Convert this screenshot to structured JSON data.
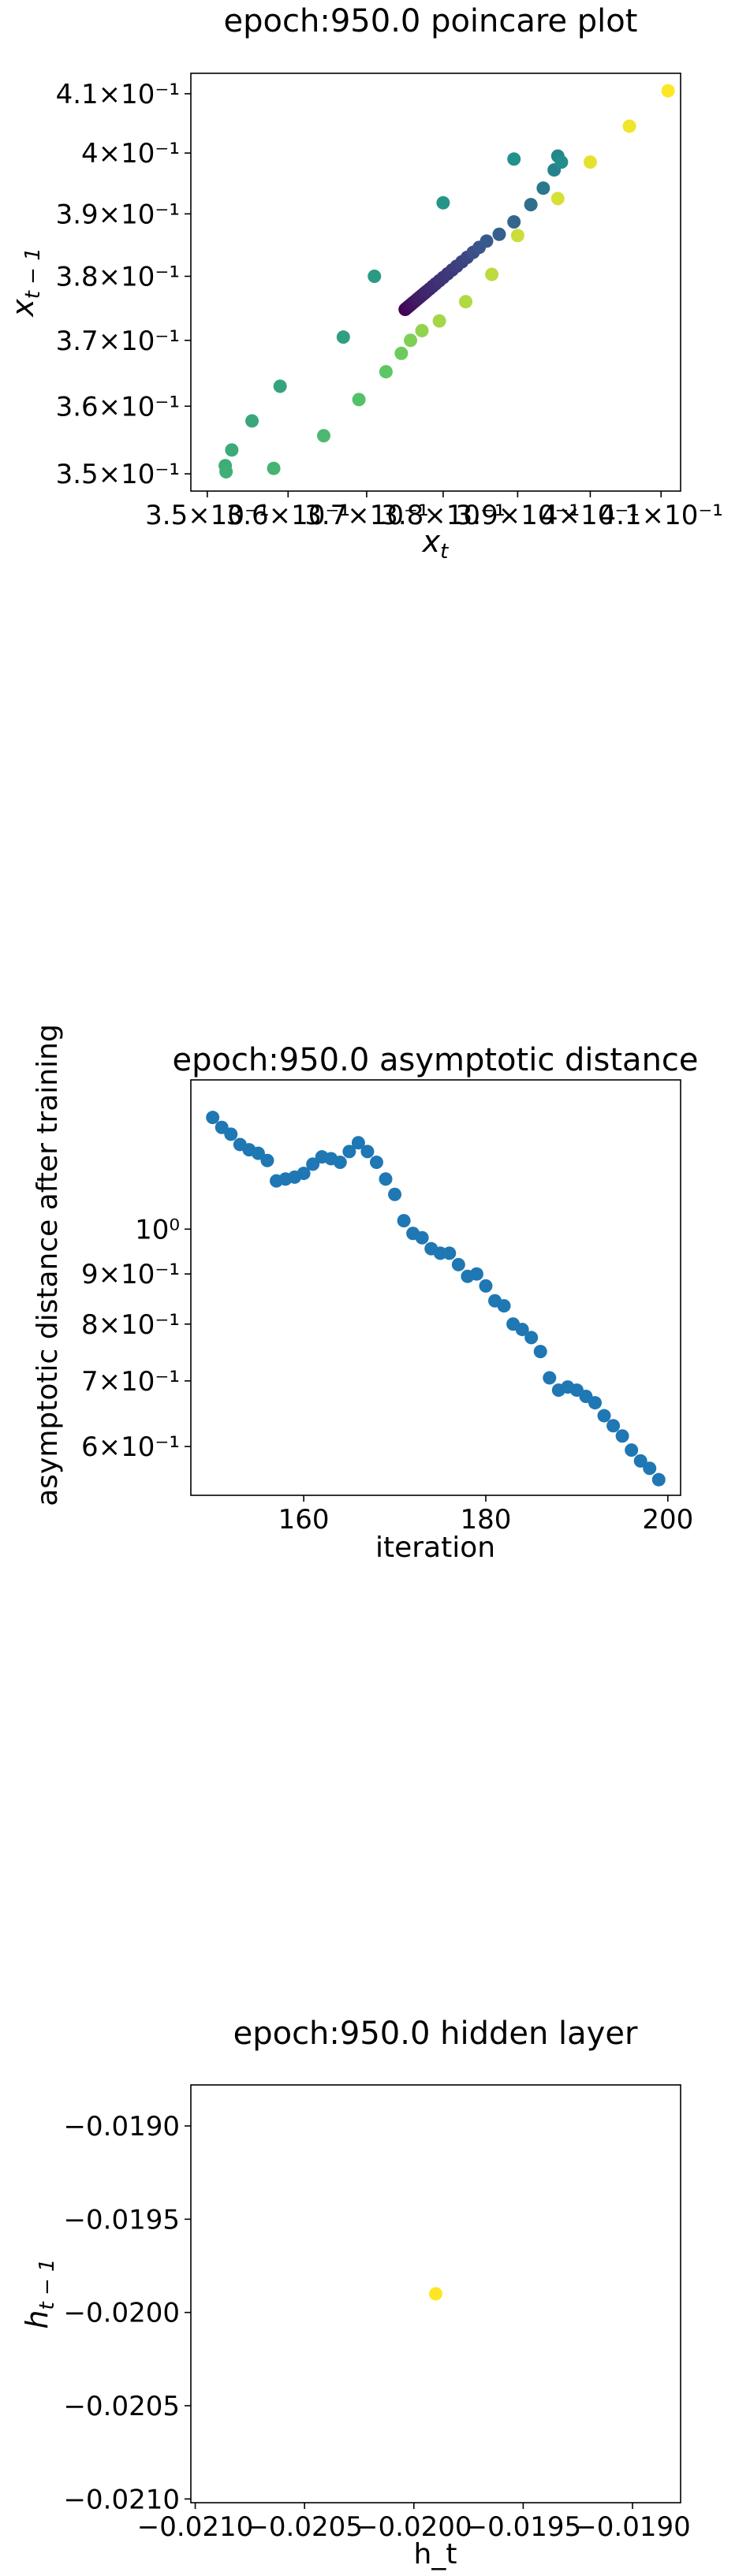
{
  "chart_data": [
    {
      "type": "scatter",
      "title": "epoch:950.0 poincare plot",
      "xlabel": "x_t",
      "ylabel": "x_{t-1}",
      "x_scale": "log",
      "y_scale": "log",
      "xlim": [
        0.348,
        0.4128
      ],
      "ylim": [
        0.3475,
        0.4135
      ],
      "grid": false,
      "colormap": "viridis",
      "x_ticks": [
        {
          "value": 0.35,
          "label": "3.5×10⁻¹"
        },
        {
          "value": 0.36,
          "label": "3.6×10⁻¹"
        },
        {
          "value": 0.37,
          "label": "3.7×10⁻¹"
        },
        {
          "value": 0.38,
          "label": "3.8×10⁻¹"
        },
        {
          "value": 0.39,
          "label": "3.9×10⁻¹"
        },
        {
          "value": 0.4,
          "label": "4×10⁻¹"
        },
        {
          "value": 0.41,
          "label": "4.1×10⁻¹"
        }
      ],
      "y_ticks": [
        {
          "value": 0.35,
          "label": "3.5×10⁻¹"
        },
        {
          "value": 0.36,
          "label": "3.6×10⁻¹"
        },
        {
          "value": 0.37,
          "label": "3.7×10⁻¹"
        },
        {
          "value": 0.38,
          "label": "3.8×10⁻¹"
        },
        {
          "value": 0.39,
          "label": "3.9×10⁻¹"
        },
        {
          "value": 0.4,
          "label": "4×10⁻¹"
        },
        {
          "value": 0.41,
          "label": "4.1×10⁻¹"
        }
      ],
      "points": [
        {
          "x": 0.375,
          "y": 0.3748,
          "c": 0.0
        },
        {
          "x": 0.3752,
          "y": 0.375,
          "c": 0.01
        },
        {
          "x": 0.3754,
          "y": 0.3752,
          "c": 0.02
        },
        {
          "x": 0.3756,
          "y": 0.3754,
          "c": 0.03
        },
        {
          "x": 0.3758,
          "y": 0.3756,
          "c": 0.04
        },
        {
          "x": 0.376,
          "y": 0.3758,
          "c": 0.05
        },
        {
          "x": 0.3763,
          "y": 0.3761,
          "c": 0.06
        },
        {
          "x": 0.3766,
          "y": 0.3764,
          "c": 0.07
        },
        {
          "x": 0.3769,
          "y": 0.3767,
          "c": 0.08
        },
        {
          "x": 0.3772,
          "y": 0.377,
          "c": 0.09
        },
        {
          "x": 0.3775,
          "y": 0.3773,
          "c": 0.1
        },
        {
          "x": 0.3778,
          "y": 0.3776,
          "c": 0.11
        },
        {
          "x": 0.3782,
          "y": 0.378,
          "c": 0.12
        },
        {
          "x": 0.3786,
          "y": 0.3784,
          "c": 0.13
        },
        {
          "x": 0.379,
          "y": 0.3788,
          "c": 0.14
        },
        {
          "x": 0.3795,
          "y": 0.3793,
          "c": 0.15
        },
        {
          "x": 0.38,
          "y": 0.3798,
          "c": 0.16
        },
        {
          "x": 0.3806,
          "y": 0.3804,
          "c": 0.17
        },
        {
          "x": 0.3812,
          "y": 0.381,
          "c": 0.18
        },
        {
          "x": 0.3818,
          "y": 0.3816,
          "c": 0.19
        },
        {
          "x": 0.3825,
          "y": 0.3823,
          "c": 0.2
        },
        {
          "x": 0.3832,
          "y": 0.383,
          "c": 0.22
        },
        {
          "x": 0.384,
          "y": 0.3838,
          "c": 0.24
        },
        {
          "x": 0.3848,
          "y": 0.3846,
          "c": 0.26
        },
        {
          "x": 0.3858,
          "y": 0.3856,
          "c": 0.28
        },
        {
          "x": 0.3875,
          "y": 0.3867,
          "c": 0.3
        },
        {
          "x": 0.3895,
          "y": 0.3887,
          "c": 0.33
        },
        {
          "x": 0.3918,
          "y": 0.3915,
          "c": 0.36
        },
        {
          "x": 0.3935,
          "y": 0.3942,
          "c": 0.4
        },
        {
          "x": 0.395,
          "y": 0.3972,
          "c": 0.44
        },
        {
          "x": 0.3955,
          "y": 0.3995,
          "c": 0.46
        },
        {
          "x": 0.396,
          "y": 0.3985,
          "c": 0.48
        },
        {
          "x": 0.3895,
          "y": 0.399,
          "c": 0.5
        },
        {
          "x": 0.38,
          "y": 0.3918,
          "c": 0.52
        },
        {
          "x": 0.371,
          "y": 0.38,
          "c": 0.54
        },
        {
          "x": 0.367,
          "y": 0.3705,
          "c": 0.56
        },
        {
          "x": 0.359,
          "y": 0.363,
          "c": 0.58
        },
        {
          "x": 0.3555,
          "y": 0.3578,
          "c": 0.6
        },
        {
          "x": 0.353,
          "y": 0.3535,
          "c": 0.61
        },
        {
          "x": 0.3522,
          "y": 0.3512,
          "c": 0.62
        },
        {
          "x": 0.3523,
          "y": 0.3503,
          "c": 0.63
        },
        {
          "x": 0.3582,
          "y": 0.3508,
          "c": 0.65
        },
        {
          "x": 0.3645,
          "y": 0.3556,
          "c": 0.68
        },
        {
          "x": 0.369,
          "y": 0.361,
          "c": 0.71
        },
        {
          "x": 0.3725,
          "y": 0.3652,
          "c": 0.74
        },
        {
          "x": 0.3745,
          "y": 0.368,
          "c": 0.77
        },
        {
          "x": 0.3757,
          "y": 0.37,
          "c": 0.8
        },
        {
          "x": 0.3772,
          "y": 0.3715,
          "c": 0.83
        },
        {
          "x": 0.3795,
          "y": 0.373,
          "c": 0.86
        },
        {
          "x": 0.383,
          "y": 0.376,
          "c": 0.88
        },
        {
          "x": 0.3865,
          "y": 0.3803,
          "c": 0.9
        },
        {
          "x": 0.39,
          "y": 0.3865,
          "c": 0.92
        },
        {
          "x": 0.3955,
          "y": 0.3925,
          "c": 0.94
        },
        {
          "x": 0.4,
          "y": 0.3985,
          "c": 0.96
        },
        {
          "x": 0.4055,
          "y": 0.4045,
          "c": 0.98
        },
        {
          "x": 0.411,
          "y": 0.4105,
          "c": 1.0
        }
      ]
    },
    {
      "type": "scatter",
      "title": "epoch:950.0 asymptotic distance",
      "xlabel": "iteration",
      "ylabel": "asymptotic distance after training",
      "x_scale": "linear",
      "y_scale": "log",
      "xlim": [
        147.6,
        201.4
      ],
      "ylim": [
        0.535,
        1.42
      ],
      "grid": false,
      "color": "#1f77b4",
      "x_ticks": [
        {
          "value": 160,
          "label": "160"
        },
        {
          "value": 180,
          "label": "180"
        },
        {
          "value": 200,
          "label": "200"
        }
      ],
      "y_ticks": [
        {
          "value": 1.0,
          "label": "10⁰"
        },
        {
          "value": 0.9,
          "label": "9×10⁻¹"
        },
        {
          "value": 0.8,
          "label": "8×10⁻¹"
        },
        {
          "value": 0.7,
          "label": "7×10⁻¹"
        },
        {
          "value": 0.6,
          "label": "6×10⁻¹"
        }
      ],
      "x": [
        150,
        151,
        152,
        153,
        154,
        155,
        156,
        157,
        158,
        159,
        160,
        161,
        162,
        163,
        164,
        165,
        166,
        167,
        168,
        169,
        170,
        171,
        172,
        173,
        174,
        175,
        176,
        177,
        178,
        179,
        180,
        181,
        182,
        183,
        184,
        185,
        186,
        187,
        188,
        189,
        190,
        191,
        192,
        193,
        194,
        195,
        196,
        197,
        198,
        199
      ],
      "y": [
        1.3,
        1.27,
        1.25,
        1.22,
        1.205,
        1.195,
        1.175,
        1.12,
        1.125,
        1.13,
        1.14,
        1.165,
        1.185,
        1.18,
        1.17,
        1.2,
        1.225,
        1.2,
        1.17,
        1.125,
        1.085,
        1.02,
        0.99,
        0.98,
        0.955,
        0.945,
        0.945,
        0.92,
        0.895,
        0.9,
        0.875,
        0.845,
        0.835,
        0.8,
        0.79,
        0.775,
        0.75,
        0.705,
        0.685,
        0.69,
        0.685,
        0.675,
        0.665,
        0.645,
        0.63,
        0.615,
        0.595,
        0.58,
        0.57,
        0.555
      ]
    },
    {
      "type": "scatter",
      "title": "epoch:950.0 hidden layer",
      "xlabel": "h_t",
      "ylabel": "h_{t-1}",
      "x_scale": "linear",
      "y_scale": "linear",
      "xlim": [
        -0.02102,
        -0.01878
      ],
      "ylim": [
        -0.02102,
        -0.01878
      ],
      "grid": false,
      "color": "#fde725",
      "x_ticks": [
        {
          "value": -0.021,
          "label": "−0.0210"
        },
        {
          "value": -0.0205,
          "label": "−0.0205"
        },
        {
          "value": -0.02,
          "label": "−0.0200"
        },
        {
          "value": -0.0195,
          "label": "−0.0195"
        },
        {
          "value": -0.019,
          "label": "−0.0190"
        }
      ],
      "y_ticks": [
        {
          "value": -0.019,
          "label": "−0.0190"
        },
        {
          "value": -0.0195,
          "label": "−0.0195"
        },
        {
          "value": -0.02,
          "label": "−0.0200"
        },
        {
          "value": -0.0205,
          "label": "−0.0205"
        },
        {
          "value": -0.021,
          "label": "−0.0210"
        }
      ],
      "points": [
        {
          "x": -0.0199,
          "y": -0.0199
        }
      ]
    }
  ]
}
